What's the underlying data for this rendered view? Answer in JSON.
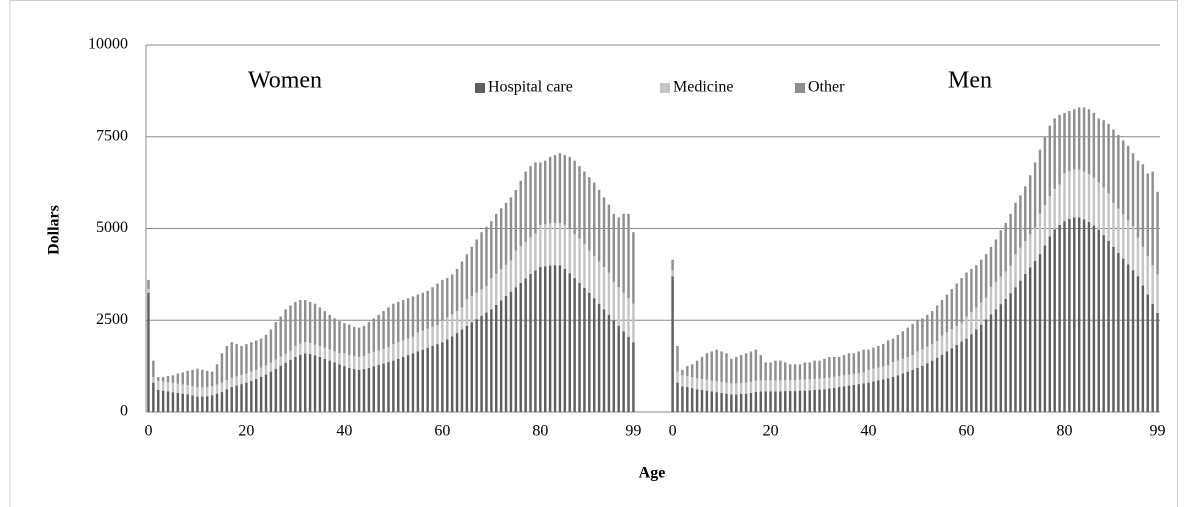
{
  "chart_data": {
    "type": "stacked_bar",
    "ylabel": "Dollars",
    "xlabel": "Age",
    "annotations": [
      "Women",
      "Men"
    ],
    "legend": "top",
    "ylim": [
      0,
      10000
    ],
    "yticks": [
      0,
      2500,
      5000,
      7500,
      10000
    ],
    "grid": true,
    "categories": [
      "0",
      null,
      null,
      null,
      null,
      null,
      null,
      null,
      null,
      null,
      null,
      null,
      null,
      null,
      null,
      null,
      null,
      null,
      null,
      null,
      "20",
      null,
      null,
      null,
      null,
      null,
      null,
      null,
      null,
      null,
      null,
      null,
      null,
      null,
      null,
      null,
      null,
      null,
      null,
      null,
      "40",
      null,
      null,
      null,
      null,
      null,
      null,
      null,
      null,
      null,
      null,
      null,
      null,
      null,
      null,
      null,
      null,
      null,
      null,
      null,
      "60",
      null,
      null,
      null,
      null,
      null,
      null,
      null,
      null,
      null,
      null,
      null,
      null,
      null,
      null,
      null,
      null,
      null,
      null,
      null,
      "80",
      null,
      null,
      null,
      null,
      null,
      null,
      null,
      null,
      null,
      null,
      null,
      null,
      null,
      null,
      null,
      null,
      null,
      null,
      "99",
      null,
      null,
      null,
      null,
      null,
      null,
      null,
      "0",
      null,
      null,
      null,
      null,
      null,
      null,
      null,
      null,
      null,
      null,
      null,
      null,
      null,
      null,
      null,
      null,
      null,
      null,
      null,
      "20",
      null,
      null,
      null,
      null,
      null,
      null,
      null,
      null,
      null,
      null,
      null,
      null,
      null,
      null,
      null,
      null,
      null,
      null,
      null,
      "40",
      null,
      null,
      null,
      null,
      null,
      null,
      null,
      null,
      null,
      null,
      null,
      null,
      null,
      null,
      null,
      null,
      null,
      null,
      null,
      "60",
      null,
      null,
      null,
      null,
      null,
      null,
      null,
      null,
      null,
      null,
      null,
      null,
      null,
      null,
      null,
      null,
      null,
      null,
      null,
      "80",
      null,
      null,
      null,
      null,
      null,
      null,
      null,
      null,
      null,
      null,
      null,
      null,
      null,
      null,
      null,
      null,
      null,
      null,
      "99"
    ],
    "series": [
      {
        "name": "Hospital care",
        "color": "#5f5f5f",
        "values": [
          3250,
          800,
          600,
          580,
          560,
          540,
          520,
          500,
          480,
          450,
          420,
          420,
          430,
          450,
          500,
          550,
          620,
          680,
          720,
          760,
          800,
          850,
          900,
          960,
          1020,
          1100,
          1180,
          1260,
          1340,
          1420,
          1500,
          1560,
          1600,
          1580,
          1540,
          1500,
          1450,
          1400,
          1350,
          1300,
          1250,
          1200,
          1170,
          1150,
          1170,
          1200,
          1240,
          1280,
          1320,
          1360,
          1400,
          1450,
          1500,
          1550,
          1600,
          1650,
          1700,
          1750,
          1800,
          1850,
          1900,
          1980,
          2060,
          2150,
          2250,
          2350,
          2440,
          2530,
          2620,
          2710,
          2800,
          2920,
          3040,
          3160,
          3280,
          3400,
          3520,
          3640,
          3760,
          3860,
          3950,
          3970,
          3990,
          4000,
          4000,
          3900,
          3780,
          3650,
          3520,
          3380,
          3250,
          3100,
          2950,
          2800,
          2650,
          2500,
          2350,
          2200,
          2050,
          1900,
          null,
          null,
          null,
          null,
          null,
          null,
          null,
          3700,
          800,
          700,
          680,
          650,
          620,
          600,
          580,
          560,
          540,
          520,
          500,
          480,
          480,
          490,
          500,
          520,
          550,
          560,
          560,
          560,
          560,
          560,
          570,
          570,
          570,
          580,
          580,
          590,
          600,
          610,
          620,
          640,
          660,
          680,
          700,
          720,
          740,
          760,
          780,
          800,
          830,
          860,
          890,
          920,
          960,
          1000,
          1050,
          1100,
          1150,
          1200,
          1260,
          1330,
          1400,
          1480,
          1560,
          1650,
          1740,
          1830,
          1920,
          2000,
          2120,
          2250,
          2380,
          2520,
          2660,
          2800,
          2940,
          3080,
          3240,
          3400,
          3580,
          3760,
          3940,
          4120,
          4300,
          4540,
          4780,
          4980,
          5100,
          5200,
          5260,
          5300,
          5300,
          5250,
          5180,
          5080,
          4960,
          4820,
          4660,
          4500,
          4340,
          4180,
          4020,
          3860,
          3700,
          3450,
          3200,
          2950,
          2700
        ]
      },
      {
        "name": "Medicine",
        "color": "#c4c4c4",
        "values": [
          100,
          150,
          250,
          250,
          250,
          250,
          250,
          250,
          250,
          250,
          250,
          250,
          250,
          250,
          250,
          250,
          250,
          250,
          250,
          250,
          250,
          250,
          250,
          250,
          250,
          250,
          250,
          250,
          250,
          250,
          300,
          300,
          300,
          300,
          300,
          300,
          300,
          300,
          300,
          300,
          350,
          350,
          350,
          350,
          350,
          400,
          400,
          400,
          400,
          400,
          450,
          450,
          450,
          450,
          450,
          520,
          520,
          520,
          520,
          520,
          600,
          600,
          600,
          600,
          600,
          720,
          720,
          720,
          720,
          720,
          850,
          850,
          850,
          850,
          850,
          1000,
          1000,
          1000,
          1000,
          1000,
          1150,
          1150,
          1150,
          1150,
          1150,
          1200,
          1200,
          1200,
          1200,
          1200,
          1150,
          1150,
          1150,
          1150,
          1150,
          1050,
          1050,
          1050,
          1050,
          1050,
          null,
          null,
          null,
          null,
          null,
          null,
          null,
          150,
          300,
          300,
          300,
          300,
          300,
          300,
          300,
          300,
          300,
          300,
          300,
          300,
          300,
          300,
          300,
          300,
          300,
          300,
          300,
          300,
          300,
          300,
          300,
          300,
          300,
          300,
          300,
          300,
          300,
          300,
          300,
          300,
          300,
          300,
          300,
          300,
          300,
          300,
          300,
          350,
          350,
          350,
          350,
          350,
          400,
          400,
          400,
          400,
          400,
          450,
          450,
          450,
          450,
          450,
          520,
          520,
          520,
          520,
          520,
          600,
          600,
          600,
          600,
          600,
          750,
          750,
          750,
          750,
          750,
          900,
          900,
          900,
          900,
          900,
          1100,
          1100,
          1100,
          1100,
          1100,
          1300,
          1300,
          1300,
          1300,
          1300,
          1300,
          1300,
          1300,
          1300,
          1300,
          1200,
          1200,
          1200,
          1200,
          1200,
          1050,
          1050,
          1050,
          1050,
          1050
        ]
      },
      {
        "name": "Other",
        "color": "#8f8f8f",
        "values": [
          250,
          450,
          100,
          120,
          170,
          210,
          280,
          330,
          390,
          450,
          510,
          480,
          440,
          400,
          550,
          800,
          930,
          970,
          880,
          790,
          800,
          800,
          800,
          790,
          830,
          900,
          1020,
          1090,
          1210,
          1230,
          1200,
          1190,
          1150,
          1120,
          1110,
          1050,
          1000,
          950,
          900,
          880,
          820,
          830,
          800,
          800,
          830,
          850,
          910,
          970,
          1030,
          1090,
          1100,
          1100,
          1100,
          1100,
          1100,
          1030,
          1030,
          1030,
          1080,
          1130,
          1100,
          1070,
          1090,
          1150,
          1250,
          1230,
          1340,
          1450,
          1560,
          1620,
          1550,
          1630,
          1660,
          1690,
          1720,
          1650,
          1780,
          1910,
          1940,
          1940,
          1700,
          1730,
          1810,
          1850,
          1900,
          1900,
          1970,
          2000,
          1980,
          1970,
          2000,
          2000,
          1950,
          1900,
          1850,
          1850,
          1900,
          2150,
          2300,
          1950,
          null,
          null,
          null,
          null,
          null,
          null,
          null,
          300,
          700,
          150,
          270,
          350,
          480,
          600,
          720,
          790,
          860,
          830,
          800,
          670,
          720,
          760,
          800,
          830,
          850,
          690,
          490,
          490,
          540,
          540,
          480,
          430,
          430,
          420,
          470,
          460,
          500,
          490,
          530,
          560,
          540,
          520,
          550,
          580,
          560,
          590,
          620,
          550,
          570,
          590,
          610,
          680,
          640,
          700,
          750,
          800,
          850,
          850,
          840,
          870,
          900,
          970,
          970,
          1030,
          1090,
          1150,
          1210,
          1200,
          1180,
          1150,
          1170,
          1180,
          1090,
          1150,
          1260,
          1320,
          1410,
          1400,
          1420,
          1490,
          1610,
          1780,
          1750,
          1860,
          1920,
          1920,
          1900,
          1650,
          1640,
          1650,
          1700,
          1750,
          1770,
          1770,
          1740,
          1830,
          1890,
          2000,
          2010,
          2020,
          2030,
          1990,
          2100,
          2250,
          2250,
          2550,
          2250
        ]
      }
    ]
  }
}
